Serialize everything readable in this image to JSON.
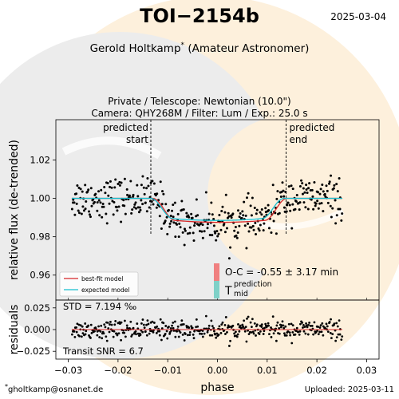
{
  "header": {
    "title": "TOI−2154b",
    "obs_date": "2025-03-04",
    "observer_name": "Gerold Holtkamp",
    "observer_role": "(Amateur Astronomer)",
    "telescope_line": "Private / Telescope: Newtonian (10.0\")",
    "camera_line": "Camera: QHY268M / Filter: Lum / Exp.: 25.0 s"
  },
  "footer": {
    "email": "gholtkamp@osnanet.de",
    "uploaded": "Uploaded: 2025-03-11"
  },
  "colors": {
    "best_fit": "#d62728",
    "expected": "#17becf",
    "oc_bar": "#f08080",
    "mid_bar": "#7fd1c8",
    "points": "#000000",
    "bg_cream": "#fdf0dc",
    "bg_grey": "#ececec"
  },
  "chart_data": [
    {
      "type": "scatter",
      "panel": "main",
      "xlabel": "phase",
      "ylabel": "relative flux (de-trended)",
      "xlim": [
        -0.0325,
        0.0325
      ],
      "ylim": [
        0.947,
        1.041
      ],
      "yticks": [
        0.96,
        0.98,
        1.0,
        1.02
      ],
      "ytick_labels": [
        "0.96",
        "0.98",
        "1.00",
        "1.02"
      ],
      "vlines": [
        {
          "x": -0.0134,
          "label_line1": "predicted",
          "label_line2": "start",
          "align": "right"
        },
        {
          "x": 0.0138,
          "label_line1": "predicted",
          "label_line2": "end",
          "align": "left"
        }
      ],
      "models": {
        "best_fit": {
          "name": "best-fit model",
          "x_start": -0.0293,
          "x_end": 0.0251,
          "t_center": 0.0005,
          "half_width": 0.0135,
          "ingress": 0.0045,
          "depth": 0.0125
        },
        "expected": {
          "name": "expected model",
          "x_start": -0.0293,
          "x_end": 0.0251,
          "t_center": 0.0,
          "half_width": 0.0134,
          "ingress": 0.0045,
          "depth": 0.0115
        }
      },
      "annotations": {
        "oc_text": "O-C = -0.55 ± 3.17 min",
        "tmid_main": "T",
        "tmid_sup": "prediction",
        "tmid_sub": "mid"
      },
      "legend": {
        "placement": "lower-left",
        "entries": [
          "best-fit model",
          "expected model"
        ]
      }
    },
    {
      "type": "scatter",
      "panel": "residuals",
      "xlabel": "phase",
      "ylabel": "residuals",
      "xlim": [
        -0.0325,
        0.0325
      ],
      "ylim": [
        -0.034,
        0.034
      ],
      "xticks": [
        -0.03,
        -0.02,
        -0.01,
        0.0,
        0.01,
        0.02,
        0.03
      ],
      "xtick_labels": [
        "−0.03",
        "−0.02",
        "−0.01",
        "0.00",
        "0.01",
        "0.02",
        "0.03"
      ],
      "yticks": [
        -0.025,
        0.0,
        0.025
      ],
      "ytick_labels": [
        "−0.025",
        "0.000",
        "0.025"
      ],
      "std_text": "STD = 7.194 ‰",
      "snr_text": "Transit SNR = 6.7",
      "n_points": 400,
      "x_range": [
        -0.0293,
        0.0251
      ],
      "scatter_sigma": 0.0072
    }
  ]
}
